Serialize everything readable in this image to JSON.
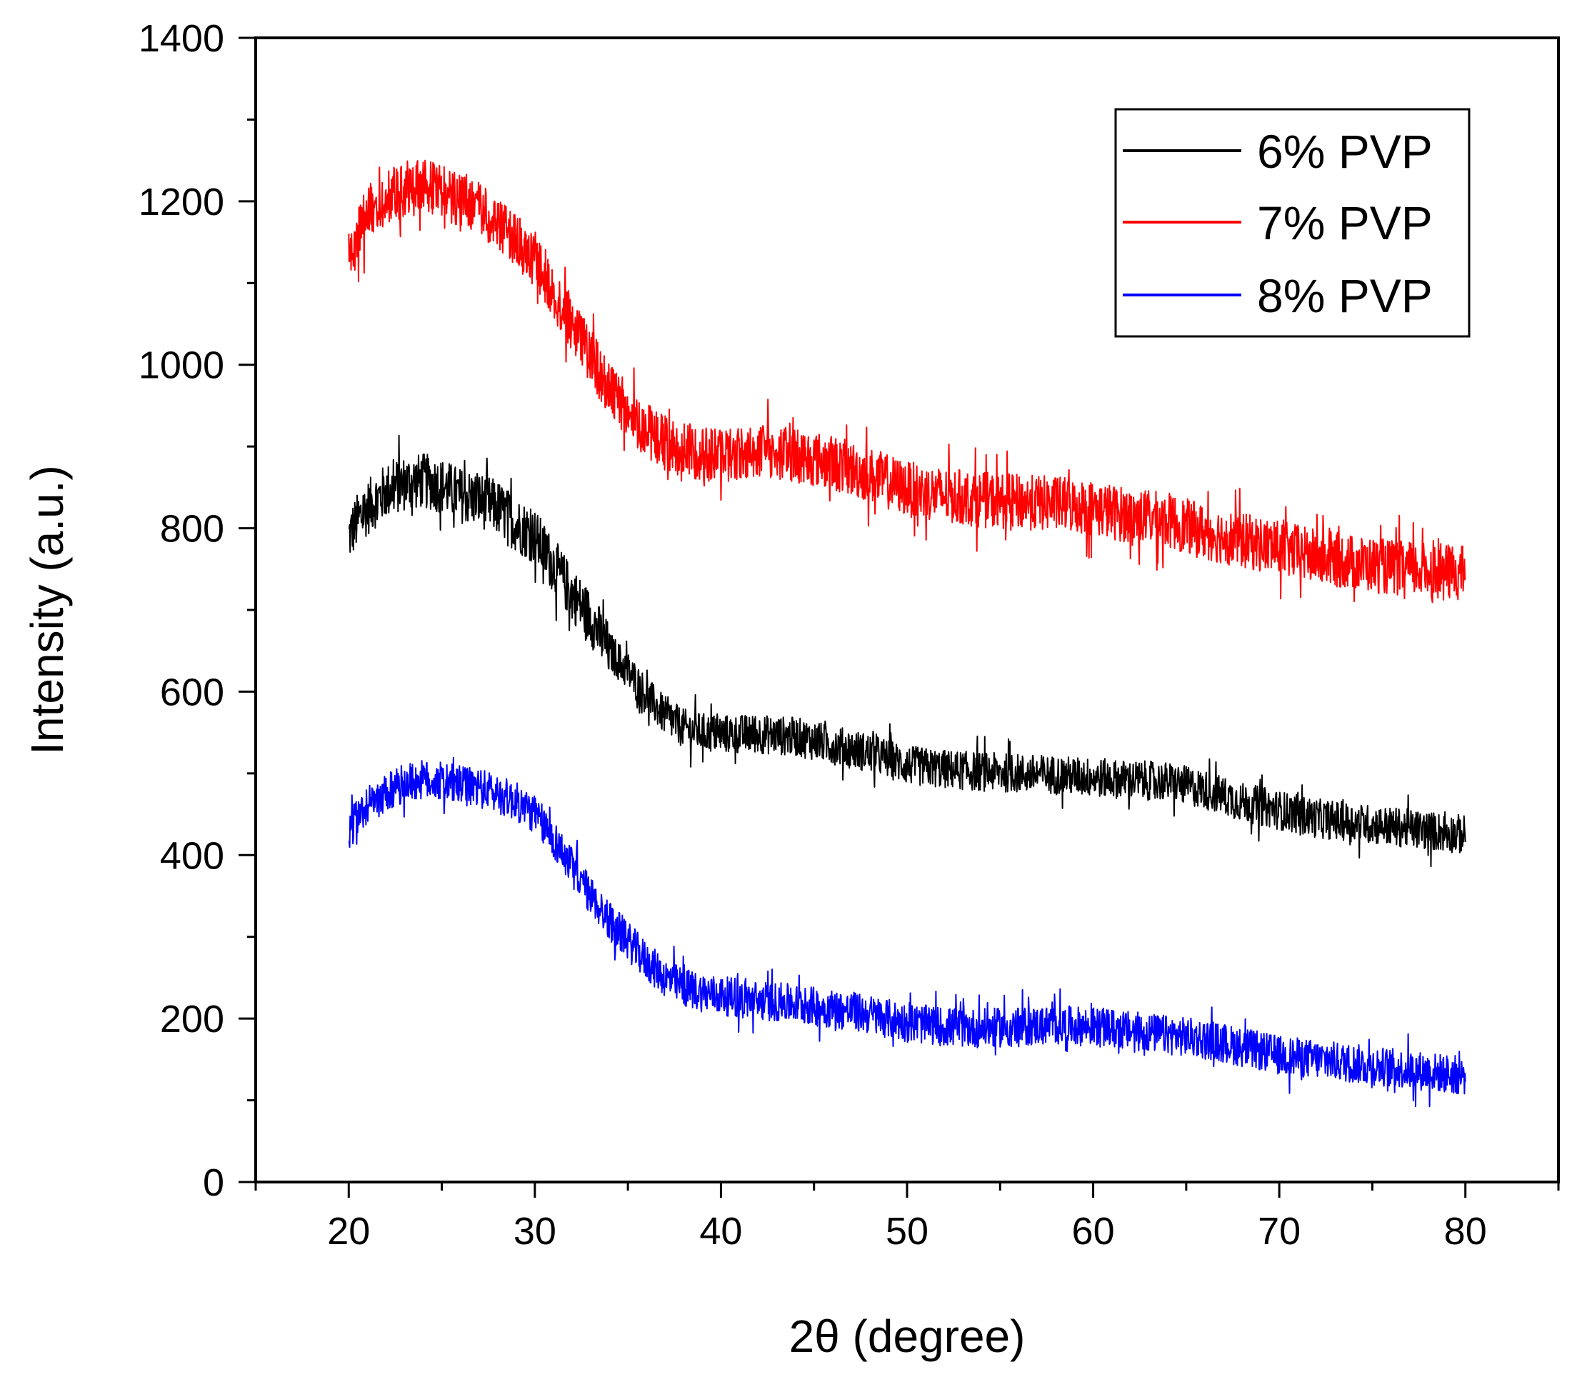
{
  "chart_data": {
    "type": "line",
    "title": "",
    "xlabel": "2θ (degree)",
    "ylabel": "Intensity (a.u.)",
    "xlim": [
      15,
      85
    ],
    "ylim": [
      0,
      1400
    ],
    "x_ticks": [
      20,
      30,
      40,
      50,
      60,
      70,
      80
    ],
    "y_ticks": [
      0,
      200,
      400,
      600,
      800,
      1000,
      1200,
      1400
    ],
    "legend_position": "top-right",
    "grid": false,
    "series": [
      {
        "name": "6% PVP",
        "color": "#000000",
        "x": [
          20,
          20.5,
          21,
          22,
          23,
          24,
          25,
          26,
          27,
          28,
          29,
          30,
          31,
          32,
          33,
          34,
          35,
          36,
          37,
          38,
          39,
          40,
          42,
          44,
          46,
          48,
          50,
          52,
          54,
          56,
          58,
          60,
          62,
          64,
          66,
          68,
          70,
          72,
          74,
          76,
          78,
          80
        ],
        "values": [
          790,
          810,
          825,
          845,
          855,
          858,
          852,
          840,
          835,
          825,
          805,
          790,
          755,
          720,
          690,
          650,
          625,
          595,
          570,
          555,
          550,
          548,
          548,
          545,
          535,
          525,
          510,
          505,
          502,
          500,
          498,
          495,
          492,
          490,
          480,
          465,
          455,
          445,
          440,
          435,
          430,
          425
        ]
      },
      {
        "name": "7% PVP",
        "color": "#ff0000",
        "x": [
          20,
          20.5,
          21,
          22,
          23,
          24,
          25,
          26,
          27,
          28,
          29,
          30,
          31,
          32,
          33,
          34,
          35,
          36,
          37,
          38,
          39,
          40,
          42,
          44,
          46,
          48,
          50,
          52,
          54,
          56,
          58,
          60,
          62,
          64,
          66,
          68,
          70,
          72,
          74,
          76,
          78,
          80
        ],
        "values": [
          1130,
          1160,
          1185,
          1205,
          1215,
          1218,
          1210,
          1200,
          1190,
          1170,
          1150,
          1130,
          1090,
          1050,
          1010,
          970,
          945,
          920,
          905,
          895,
          892,
          890,
          895,
          890,
          880,
          865,
          848,
          840,
          835,
          832,
          830,
          825,
          815,
          810,
          795,
          785,
          775,
          765,
          758,
          752,
          748,
          745
        ]
      },
      {
        "name": "8% PVP",
        "color": "#0000ff",
        "x": [
          20,
          20.5,
          21,
          22,
          23,
          24,
          25,
          26,
          27,
          28,
          29,
          30,
          31,
          32,
          33,
          34,
          35,
          36,
          37,
          38,
          39,
          40,
          42,
          44,
          46,
          48,
          50,
          52,
          54,
          56,
          58,
          60,
          62,
          64,
          66,
          68,
          70,
          72,
          74,
          76,
          78,
          80
        ],
        "values": [
          430,
          445,
          460,
          475,
          488,
          492,
          490,
          485,
          482,
          475,
          465,
          450,
          420,
          385,
          350,
          320,
          295,
          270,
          250,
          238,
          232,
          228,
          222,
          218,
          212,
          205,
          195,
          190,
          188,
          190,
          192,
          190,
          185,
          180,
          175,
          165,
          155,
          150,
          145,
          140,
          135,
          130
        ]
      }
    ]
  }
}
